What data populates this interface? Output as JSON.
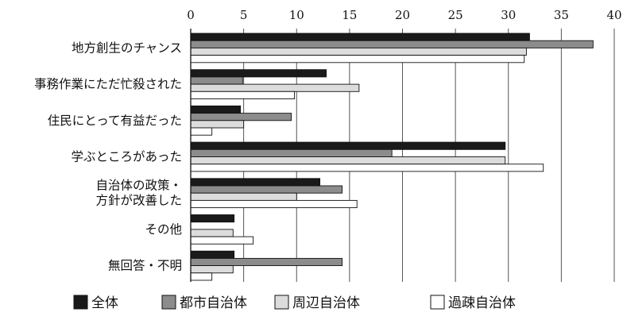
{
  "chart_data": {
    "type": "bar",
    "orientation": "horizontal",
    "categories": [
      [
        "地方創生のチャンス"
      ],
      [
        "事務作業にただ忙殺された"
      ],
      [
        "住民にとって有益だった"
      ],
      [
        "学ぶところがあった"
      ],
      [
        "自治体の政策・",
        "方針が改善した"
      ],
      [
        "その他"
      ],
      [
        "無回答・不明"
      ]
    ],
    "series": [
      {
        "name": "全体",
        "color": "#1a1a1a",
        "values": [
          32.0,
          12.8,
          4.7,
          29.7,
          12.2,
          4.1,
          4.1
        ]
      },
      {
        "name": "都市自治体",
        "color": "#8c8c8c",
        "values": [
          38.0,
          4.9,
          9.5,
          19.0,
          14.3,
          0,
          14.3
        ]
      },
      {
        "name": "周辺自治体",
        "color": "#dcdcdc",
        "values": [
          31.7,
          15.9,
          5.0,
          29.7,
          10.0,
          4.0,
          4.0
        ]
      },
      {
        "name": "過疎自治体",
        "color": "#ffffff",
        "values": [
          31.5,
          9.8,
          2.0,
          33.3,
          15.7,
          5.9,
          2.0
        ]
      }
    ],
    "xlim": [
      0,
      40
    ],
    "xticks": [
      0,
      5,
      10,
      15,
      20,
      25,
      30,
      35,
      40
    ],
    "grid": true,
    "legend_position": "bottom"
  }
}
